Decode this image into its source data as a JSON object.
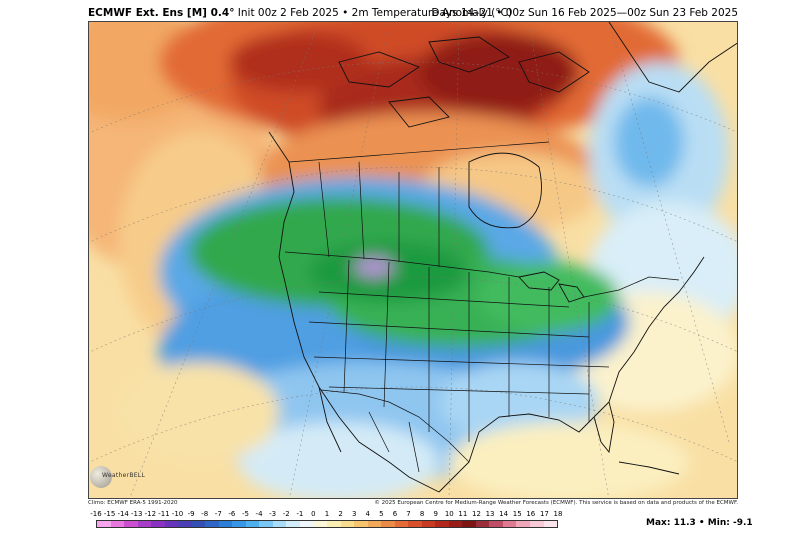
{
  "header": {
    "title_bold": "ECMWF Ext. Ens [M] 0.4°",
    "title_rest": " Init 00z 2 Feb 2025 • 2m Temperature Anomaly (°C)",
    "valid": "Days 14–21 • 00z Sun 16 Feb 2025—00z Sun 23 Feb 2025"
  },
  "footer": {
    "climo": "Climo: ECMWF ERA-5 1991-2020",
    "copyright": "© 2025 European Centre for Medium-Range Weather Forecasts (ECMWF). This service is based on data and products of the ECMWF."
  },
  "logo_text": "WeatherBELL",
  "stats": {
    "label": "Max: 11.3 • Min: -9.1"
  },
  "colorbar": {
    "ticks": [
      "-16",
      "-15",
      "-14",
      "-13",
      "-12",
      "-11",
      "-10",
      "-9",
      "-8",
      "-7",
      "-6",
      "-5",
      "-4",
      "-3",
      "-2",
      "-1",
      "0",
      "1",
      "2",
      "3",
      "4",
      "5",
      "6",
      "7",
      "8",
      "9",
      "10",
      "11",
      "12",
      "13",
      "14",
      "15",
      "16",
      "17",
      "18"
    ],
    "colors": [
      "#f6a5ef",
      "#e878e0",
      "#cc4fd2",
      "#a83ec8",
      "#8a33c3",
      "#6a33bd",
      "#4b3fb6",
      "#3450b5",
      "#2d66c6",
      "#2b7fd8",
      "#3597e5",
      "#4fb0ef",
      "#78c7f4",
      "#a8dcf7",
      "#d2ecf9",
      "#f0f7fb",
      "#fbf7d8",
      "#fbefb4",
      "#f9dd8e",
      "#f6c56e",
      "#f2a95a",
      "#ec8b48",
      "#e56b38",
      "#d9502c",
      "#c93a23",
      "#b2281c",
      "#9a1c18",
      "#7e1414",
      "#9b2e3a",
      "#c04d66",
      "#e07a92",
      "#f0a6b8",
      "#f7cad7",
      "#fbe4ec"
    ]
  },
  "map": {
    "layers": [
      "temperature-anomaly-field",
      "coastlines",
      "political-borders",
      "graticule"
    ],
    "regions": [
      {
        "name": "Arctic Canada / Greenland",
        "anomaly_c": 9
      },
      {
        "name": "Northern Canada",
        "anomaly_c": 6
      },
      {
        "name": "Northern Plains / Upper Midwest",
        "anomaly_c": -9
      },
      {
        "name": "Eastern US / Great Lakes",
        "anomaly_c": -6
      },
      {
        "name": "Southern US / Mexico",
        "anomaly_c": -2
      },
      {
        "name": "North Atlantic",
        "anomaly_c": -3
      },
      {
        "name": "Northeast Pacific",
        "anomaly_c": 3
      }
    ]
  }
}
